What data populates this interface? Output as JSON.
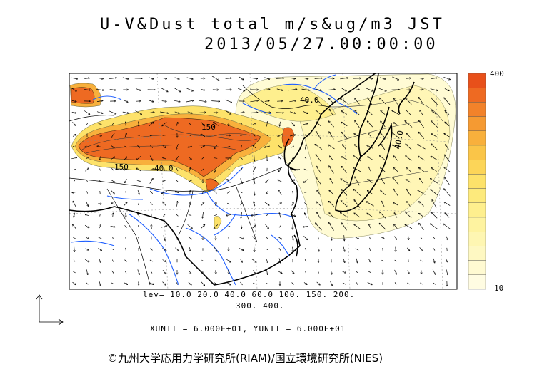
{
  "header": {
    "title": "U-V&Dust total m/s&ug/m3 JST",
    "datetime": "2013/05/27.00:00:00"
  },
  "map": {
    "contour_labels": [
      "150",
      "150",
      "40.0",
      "40.0",
      "40.0"
    ],
    "coast_color": "#000000",
    "river_color": "#1f5fff"
  },
  "colorbar": {
    "max_label": "400",
    "min_label": "10",
    "colors": [
      "#e8501a",
      "#ee6a22",
      "#f2822a",
      "#f59a32",
      "#f8b03c",
      "#fac548",
      "#fcd558",
      "#fde26a",
      "#fdea7c",
      "#feef8e",
      "#fef3a0",
      "#fef6b2",
      "#fef8c2",
      "#fffad2",
      "#fffce2"
    ]
  },
  "footer": {
    "lev_line1": "lev= 10.0 20.0 40.0 60.0 100. 150. 200.",
    "lev_line2": "300. 400.",
    "unit_line": "XUNIT = 6.000E+01, YUNIT = 6.000E+01",
    "credit": "©九州大学応用力学研究所(RIAM)/国立環境研究所(NIES)"
  }
}
